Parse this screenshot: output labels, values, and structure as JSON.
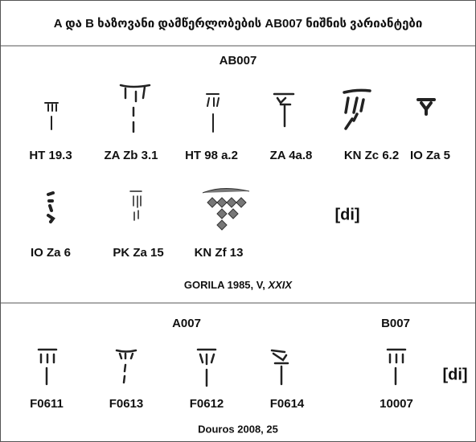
{
  "header": {
    "title": "A და B ხაზოვანი დამწერლობების  AB007 ნიშნის ვარიანტები"
  },
  "sections": [
    {
      "headings": [
        "AB007"
      ],
      "items": [
        "HT 19.3",
        "ZA Zb 3.1",
        "HT 98 a.2",
        "ZA 4a.8",
        "KN Zc 6.2",
        "IO Za 5",
        "IO Za 6",
        "PK Za 15",
        "KN Zf 13"
      ],
      "reading": "[di]",
      "source": {
        "text": "GORILA 1985, V, ",
        "italic": "XXIX"
      }
    },
    {
      "headings": [
        "A007",
        "B007"
      ],
      "items": [
        "F0611",
        "F0613",
        "F0612",
        "F0614",
        "10007"
      ],
      "reading": "[di]",
      "source": {
        "text": "Douros 2008, 25"
      }
    }
  ]
}
